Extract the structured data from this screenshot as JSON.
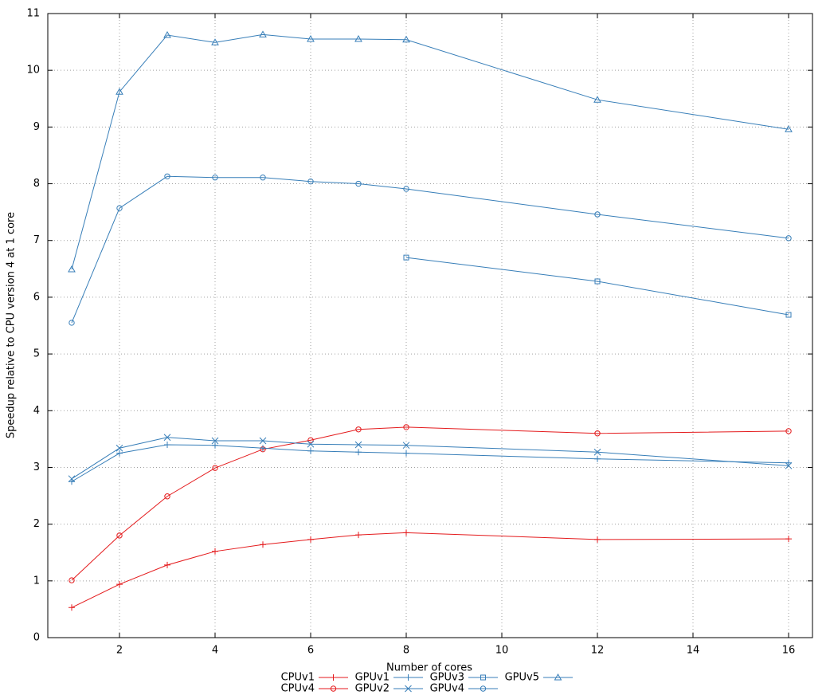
{
  "chart_data": {
    "type": "line",
    "xlabel": "Number of cores",
    "ylabel": "Speedup relative to CPU version 4 at 1 core",
    "x": [
      1,
      2,
      3,
      4,
      5,
      6,
      7,
      8,
      12,
      16
    ],
    "xlim": [
      0.5,
      16.5
    ],
    "xticks": [
      2,
      4,
      6,
      8,
      10,
      12,
      14,
      16
    ],
    "ylim": [
      0,
      11
    ],
    "yticks": [
      0,
      1,
      2,
      3,
      4,
      5,
      6,
      7,
      8,
      9,
      10,
      11
    ],
    "grid": true,
    "legend": "bottom",
    "series": [
      {
        "name": "CPUv1",
        "color": "#e41a1c",
        "marker": "plus",
        "values": [
          0.53,
          0.94,
          1.28,
          1.52,
          1.64,
          1.73,
          1.81,
          1.85,
          1.73,
          1.74
        ]
      },
      {
        "name": "CPUv4",
        "color": "#e41a1c",
        "marker": "circle",
        "values": [
          1.01,
          1.8,
          2.49,
          2.99,
          3.32,
          3.48,
          3.67,
          3.71,
          3.6,
          3.64
        ]
      },
      {
        "name": "GPUv1",
        "color": "#377eb8",
        "marker": "plus",
        "values": [
          2.75,
          3.25,
          3.4,
          3.39,
          3.34,
          3.29,
          3.27,
          3.25,
          3.15,
          3.08
        ]
      },
      {
        "name": "GPUv2",
        "color": "#377eb8",
        "marker": "x",
        "values": [
          2.8,
          3.34,
          3.53,
          3.47,
          3.47,
          3.41,
          3.4,
          3.39,
          3.27,
          3.03
        ]
      },
      {
        "name": "GPUv3",
        "color": "#377eb8",
        "marker": "square",
        "values": [
          null,
          null,
          null,
          null,
          null,
          null,
          null,
          6.7,
          6.28,
          5.69
        ]
      },
      {
        "name": "GPUv4",
        "color": "#377eb8",
        "marker": "circle",
        "values": [
          5.55,
          7.57,
          8.13,
          8.11,
          8.11,
          8.04,
          8.0,
          7.91,
          7.46,
          7.04
        ]
      },
      {
        "name": "GPUv5",
        "color": "#377eb8",
        "marker": "triangle",
        "values": [
          6.49,
          9.62,
          10.62,
          10.49,
          10.63,
          10.55,
          10.55,
          10.54,
          9.48,
          8.96
        ]
      }
    ]
  }
}
